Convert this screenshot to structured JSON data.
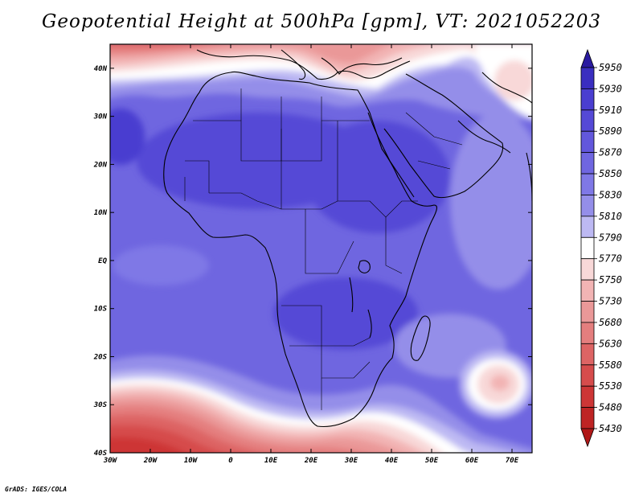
{
  "title": "Geopotential Height at 500hPa [gpm], VT: 2021052203",
  "credit": "GrADS: IGES/COLA",
  "map": {
    "lon_range": [
      -30,
      75
    ],
    "lat_range": [
      -40,
      45
    ],
    "lon_ticks": [
      {
        "value": -30,
        "label": "30W"
      },
      {
        "value": -20,
        "label": "20W"
      },
      {
        "value": -10,
        "label": "10W"
      },
      {
        "value": 0,
        "label": "0"
      },
      {
        "value": 10,
        "label": "10E"
      },
      {
        "value": 20,
        "label": "20E"
      },
      {
        "value": 30,
        "label": "30E"
      },
      {
        "value": 40,
        "label": "40E"
      },
      {
        "value": 50,
        "label": "50E"
      },
      {
        "value": 60,
        "label": "60E"
      },
      {
        "value": 70,
        "label": "70E"
      }
    ],
    "lat_ticks": [
      {
        "value": 40,
        "label": "40N"
      },
      {
        "value": 30,
        "label": "30N"
      },
      {
        "value": 20,
        "label": "20N"
      },
      {
        "value": 10,
        "label": "10N"
      },
      {
        "value": 0,
        "label": "EQ"
      },
      {
        "value": -10,
        "label": "10S"
      },
      {
        "value": -20,
        "label": "20S"
      },
      {
        "value": -30,
        "label": "30S"
      },
      {
        "value": -40,
        "label": "40S"
      }
    ]
  },
  "colorbar": {
    "levels": [
      5950,
      5930,
      5910,
      5890,
      5870,
      5850,
      5830,
      5810,
      5790,
      5770,
      5750,
      5730,
      5680,
      5630,
      5580,
      5530,
      5480,
      5430
    ],
    "colors": [
      "#2a1aa0",
      "#3a2ec0",
      "#4a3ed0",
      "#5549d6",
      "#6257dc",
      "#6f66e0",
      "#7f78e6",
      "#948ee9",
      "#bdb9f3",
      "#ffffff",
      "#f8d8d8",
      "#f2b4b4",
      "#ea9898",
      "#e47e7e",
      "#dd6464",
      "#d64c4c",
      "#cd3636",
      "#be2424",
      "#b01818"
    ]
  }
}
